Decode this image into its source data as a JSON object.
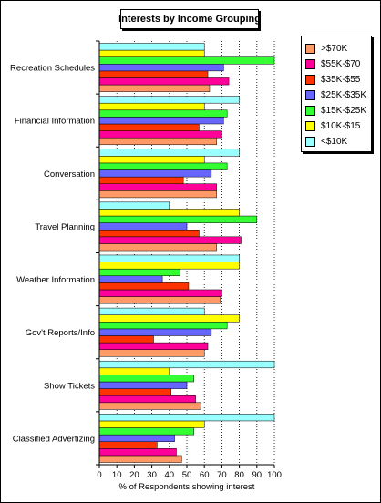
{
  "chart_data": {
    "type": "bar",
    "orientation": "horizontal",
    "title": "Interests by Income Grouping",
    "xlabel": "% of Respondents showing interest",
    "ylabel": "",
    "xlim": [
      0,
      100
    ],
    "x_ticks": [
      "0",
      "10",
      "20",
      "30",
      "40",
      "50",
      "60",
      "70",
      "80",
      "90",
      "100"
    ],
    "grid": "vertical-dotted",
    "legend_position": "right",
    "categories": [
      "Recreation Schedules",
      "Financial Information",
      "Conversation",
      "Travel Planning",
      "Weather Information",
      "Gov't Reports/Info",
      "Show Tickets",
      "Classified Advertizing"
    ],
    "series": [
      {
        "name": ">$70K",
        "color": "#ff9966",
        "values": [
          63,
          67,
          67,
          67,
          69,
          60,
          58,
          47
        ]
      },
      {
        "name": "$55K-$70",
        "color": "#ff0099",
        "values": [
          74,
          70,
          67,
          81,
          70,
          62,
          55,
          44
        ]
      },
      {
        "name": "$35K-$55",
        "color": "#ff3300",
        "values": [
          62,
          57,
          48,
          57,
          51,
          31,
          41,
          33
        ]
      },
      {
        "name": "$25K-$35K",
        "color": "#6666ff",
        "values": [
          71,
          71,
          64,
          50,
          36,
          64,
          50,
          43
        ]
      },
      {
        "name": "$15K-$25K",
        "color": "#33ff33",
        "values": [
          100,
          73,
          73,
          90,
          46,
          73,
          54,
          54
        ]
      },
      {
        "name": "$10K-$15",
        "color": "#ffff00",
        "values": [
          60,
          60,
          60,
          80,
          80,
          80,
          40,
          60
        ]
      },
      {
        "name": "<$10K",
        "color": "#99ffff",
        "values": [
          60,
          80,
          80,
          40,
          80,
          60,
          100,
          100
        ]
      }
    ]
  }
}
